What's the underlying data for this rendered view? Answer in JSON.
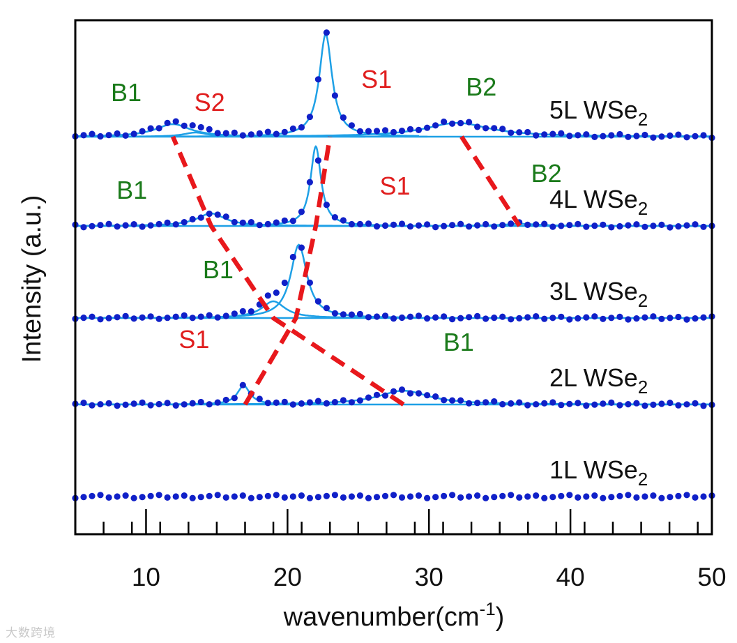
{
  "chart_data": {
    "type": "line",
    "xlabel": "wavenumber(cm",
    "xlabel_exponent": "-1",
    "xlabel_suffix": ")",
    "ylabel": "Intensity (a.u.)",
    "xlim": [
      5,
      50
    ],
    "x_major_ticks": [
      10,
      20,
      30,
      40,
      50
    ],
    "x_tick_labels": [
      "10",
      "20",
      "30",
      "40",
      "50"
    ],
    "x_minor_step": 2,
    "colors": {
      "data": "#1020c8",
      "fit": "#1ea0e6",
      "trend": "#e8181c",
      "bulk_label": "#1a7a1a",
      "shear_label": "#e01e1e",
      "axis": "#000000"
    },
    "series": [
      {
        "name": "1L WSe",
        "subscript": "2",
        "peaks": []
      },
      {
        "name": "2L WSe",
        "subscript": "2",
        "peaks": [
          {
            "label": "S1",
            "mode": "shear",
            "position": 16.9,
            "amplitude": 0.45,
            "hwhm": 0.55
          },
          {
            "label": "B1",
            "mode": "breathing",
            "position": 28.2,
            "amplitude": 0.33,
            "hwhm": 2.2
          }
        ]
      },
      {
        "name": "3L WSe",
        "subscript": "2",
        "peaks": [
          {
            "label": "S1",
            "mode": "shear",
            "position": 20.8,
            "amplitude": 1.75,
            "hwhm": 0.7
          },
          {
            "label": "B1",
            "mode": "breathing",
            "position": 19.0,
            "amplitude": 0.4,
            "hwhm": 1.0
          }
        ]
      },
      {
        "name": "4L WSe",
        "subscript": "2",
        "peaks": [
          {
            "label": "S1",
            "mode": "shear",
            "position": 22.0,
            "amplitude": 1.9,
            "hwhm": 0.45
          },
          {
            "label": "B1",
            "mode": "breathing",
            "position": 14.6,
            "amplitude": 0.3,
            "hwhm": 1.2
          },
          {
            "label": "B2",
            "mode": "breathing",
            "position": 36.5,
            "amplitude": 0.05,
            "hwhm": 1.5
          }
        ]
      },
      {
        "name": "5L WSe",
        "subscript": "2",
        "peaks": [
          {
            "label": "S1",
            "mode": "shear",
            "position": 22.7,
            "amplitude": 2.45,
            "hwhm": 0.55
          },
          {
            "label": "S2",
            "mode": "shear",
            "position": 13.5,
            "amplitude": 0.1,
            "hwhm": 1.0
          },
          {
            "label": "B1",
            "mode": "breathing",
            "position": 11.9,
            "amplitude": 0.3,
            "hwhm": 1.5
          },
          {
            "label": "B2",
            "mode": "breathing",
            "position": 32.0,
            "amplitude": 0.33,
            "hwhm": 2.8
          }
        ]
      }
    ],
    "trend_lines": [
      {
        "name": "shear S1 trend",
        "points": [
          [
            17.0,
            2
          ],
          [
            20.6,
            3
          ],
          [
            22.0,
            4
          ],
          [
            23.0,
            5
          ]
        ]
      },
      {
        "name": "breathing B1 trend",
        "points": [
          [
            28.2,
            2
          ],
          [
            19.0,
            3
          ],
          [
            14.6,
            4
          ],
          [
            11.9,
            5
          ]
        ]
      },
      {
        "name": "breathing B2 trend",
        "points": [
          [
            32.3,
            5
          ],
          [
            36.4,
            4
          ]
        ]
      }
    ]
  },
  "watermark": "大数跨境"
}
